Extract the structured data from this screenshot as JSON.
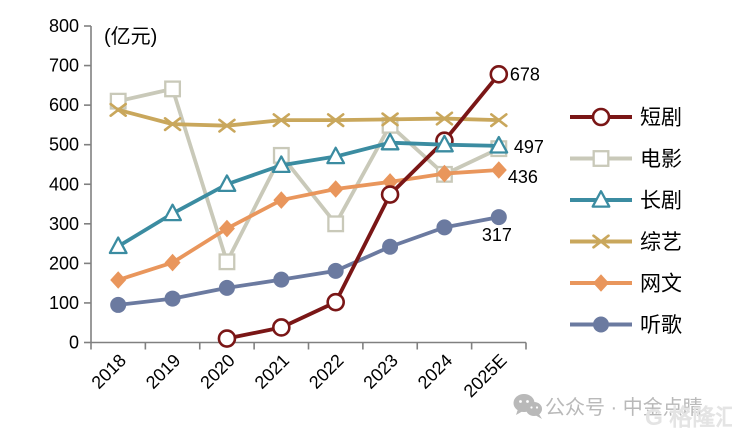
{
  "chart_data": {
    "type": "line",
    "title": "",
    "unit_label": "(亿元)",
    "categories": [
      "2018",
      "2019",
      "2020",
      "2021",
      "2022",
      "2023",
      "2024",
      "2025E"
    ],
    "xlabel": "",
    "ylabel": "",
    "ylim": [
      0,
      800
    ],
    "ytick_step": 100,
    "grid": false,
    "legend_position": "right",
    "series": [
      {
        "name": "短剧",
        "color": "#7A1616",
        "marker": "open-circle",
        "values": [
          null,
          null,
          10,
          38,
          102,
          374,
          510,
          678
        ],
        "end_label": "678"
      },
      {
        "name": "电影",
        "color": "#C9C9B9",
        "marker": "open-square",
        "values": [
          610,
          641,
          204,
          473,
          300,
          549,
          425,
          490
        ]
      },
      {
        "name": "长剧",
        "color": "#3B8CA1",
        "marker": "open-triangle",
        "values": [
          243,
          326,
          400,
          448,
          470,
          505,
          500,
          497
        ],
        "end_label": "497"
      },
      {
        "name": "综艺",
        "color": "#C9A75C",
        "marker": "x-cross",
        "values": [
          588,
          552,
          548,
          562,
          562,
          564,
          566,
          562
        ]
      },
      {
        "name": "网文",
        "color": "#E9965C",
        "marker": "diamond",
        "values": [
          158,
          202,
          288,
          360,
          388,
          406,
          427,
          436
        ],
        "end_label": "436"
      },
      {
        "name": "听歌",
        "color": "#6B7AA0",
        "marker": "circle",
        "values": [
          95,
          111,
          138,
          159,
          181,
          242,
          291,
          317
        ],
        "end_label": "317"
      }
    ],
    "draw_order": [
      "电影",
      "综艺",
      "网文",
      "听歌",
      "短剧",
      "长剧"
    ],
    "axis_color": "#808080",
    "text_color": "#000000"
  },
  "watermark": {
    "wechat_label": "公众号 · 中金点睛",
    "logo_label": "G 格隆汇"
  }
}
